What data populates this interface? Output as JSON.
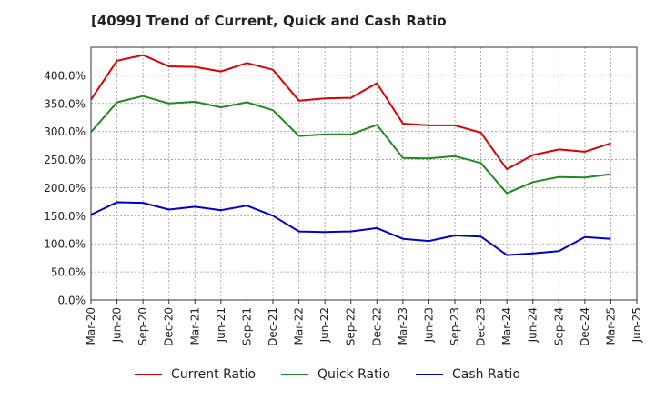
{
  "chart_data": {
    "type": "line",
    "title": "[4099]  Trend of Current, Quick and Cash Ratio",
    "xlabel": "",
    "ylabel": "",
    "ylim": [
      0,
      450
    ],
    "y_ticks": [
      "0.0%",
      "50.0%",
      "100.0%",
      "150.0%",
      "200.0%",
      "250.0%",
      "300.0%",
      "350.0%",
      "400.0%"
    ],
    "y_tick_values": [
      0,
      50,
      100,
      150,
      200,
      250,
      300,
      350,
      400
    ],
    "x_tick_labels": [
      "Mar-20",
      "Jun-20",
      "Sep-20",
      "Dec-20",
      "Mar-21",
      "Jun-21",
      "Sep-21",
      "Dec-21",
      "Mar-22",
      "Jun-22",
      "Sep-22",
      "Dec-22",
      "Mar-23",
      "Jun-23",
      "Sep-23",
      "Dec-23",
      "Mar-24",
      "Jun-24",
      "Sep-24",
      "Dec-24",
      "Mar-25",
      "Jun-25"
    ],
    "categories": [
      "Mar-20",
      "Jun-20",
      "Sep-20",
      "Dec-20",
      "Mar-21",
      "Jun-21",
      "Sep-21",
      "Dec-21",
      "Mar-22",
      "Jun-22",
      "Sep-22",
      "Dec-22",
      "Mar-23",
      "Jun-23",
      "Sep-23",
      "Dec-23",
      "Mar-24",
      "Jun-24",
      "Sep-24",
      "Dec-24",
      "Mar-25"
    ],
    "series": [
      {
        "name": "Current Ratio",
        "color": "#dd0000",
        "values": [
          357,
          426,
          436,
          416,
          415,
          407,
          422,
          410,
          355,
          359,
          360,
          386,
          314,
          311,
          311,
          298,
          233,
          258,
          268,
          264,
          279
        ]
      },
      {
        "name": "Quick Ratio",
        "color": "#228822",
        "values": [
          299,
          352,
          363,
          350,
          353,
          343,
          352,
          338,
          292,
          295,
          295,
          312,
          253,
          252,
          256,
          244,
          190,
          210,
          219,
          218,
          224
        ]
      },
      {
        "name": "Cash Ratio",
        "color": "#0000cc",
        "values": [
          152,
          174,
          173,
          161,
          166,
          160,
          168,
          150,
          122,
          121,
          122,
          128,
          109,
          105,
          115,
          113,
          80,
          83,
          87,
          112,
          109
        ]
      }
    ],
    "grid": true,
    "legend_position": "bottom"
  }
}
